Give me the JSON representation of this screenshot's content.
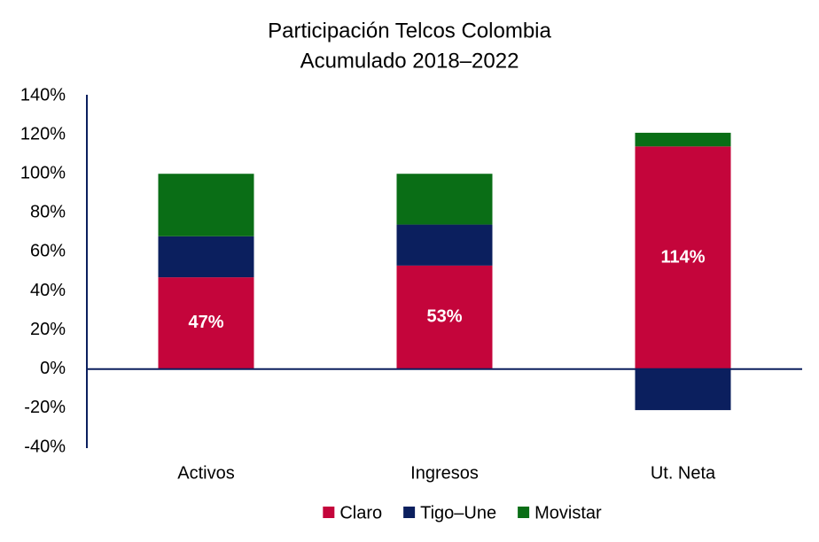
{
  "chart_data": {
    "type": "stacked_bar",
    "title": "Participación Telcos Colombia",
    "subtitle": "Acumulado 2018–2022",
    "categories": [
      "Activos",
      "Ingresos",
      "Ut. Neta"
    ],
    "series": [
      {
        "name": "Claro",
        "color": "#c4053b",
        "values": [
          47,
          53,
          114
        ],
        "value_labels": [
          "47%",
          "53%",
          "114%"
        ]
      },
      {
        "name": "Tigo–Une",
        "color": "#0b1f5e",
        "values": [
          21,
          21,
          -21
        ]
      },
      {
        "name": "Movistar",
        "color": "#0a6e16",
        "values": [
          32,
          26,
          7
        ]
      }
    ],
    "ylim": [
      -40,
      140
    ],
    "yticks": [
      {
        "value": -40,
        "label": "-40%"
      },
      {
        "value": -20,
        "label": "-20%"
      },
      {
        "value": 0,
        "label": "0%"
      },
      {
        "value": 20,
        "label": "20%"
      },
      {
        "value": 40,
        "label": "40%"
      },
      {
        "value": 60,
        "label": "60%"
      },
      {
        "value": 80,
        "label": "80%"
      },
      {
        "value": 100,
        "label": "100%"
      },
      {
        "value": 120,
        "label": "120%"
      },
      {
        "value": 140,
        "label": "140%"
      }
    ],
    "grid": false,
    "legend": "bottom"
  }
}
